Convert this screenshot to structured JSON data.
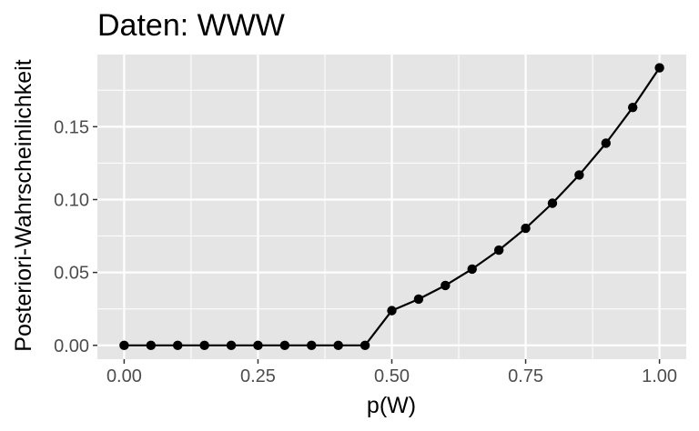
{
  "chart_data": {
    "type": "line",
    "title": "Daten: WWW",
    "xlabel": "p(W)",
    "ylabel": "Posteriori-Wahrscheinlichkeit",
    "xlim": [
      -0.05,
      1.05
    ],
    "ylim": [
      -0.0095,
      0.1995
    ],
    "x_ticks": [
      0.0,
      0.25,
      0.5,
      0.75,
      1.0
    ],
    "x_tick_labels": [
      "0.00",
      "0.25",
      "0.50",
      "0.75",
      "1.00"
    ],
    "y_ticks": [
      0.0,
      0.05,
      0.1,
      0.15
    ],
    "y_tick_labels": [
      "0.00",
      "0.05",
      "0.10",
      "0.15"
    ],
    "grid": true,
    "legend": "none",
    "colors": {
      "panel": "#e5e5e5",
      "grid": "#ffffff",
      "series": "#000000",
      "tick_text": "#4d4d4d"
    },
    "series": [
      {
        "x": [
          0.0,
          0.05,
          0.1,
          0.15,
          0.2,
          0.25,
          0.3,
          0.35,
          0.4,
          0.45,
          0.5,
          0.55,
          0.6,
          0.65,
          0.7,
          0.75,
          0.8,
          0.85,
          0.9,
          0.95,
          1.0
        ],
        "y": [
          0.0,
          0.0,
          0.0,
          0.0,
          0.0,
          0.0,
          0.0,
          0.0,
          0.0,
          0.0,
          0.0238,
          0.0317,
          0.0411,
          0.0523,
          0.0653,
          0.0803,
          0.0975,
          0.1169,
          0.1387,
          0.1632,
          0.1904
        ]
      }
    ]
  }
}
